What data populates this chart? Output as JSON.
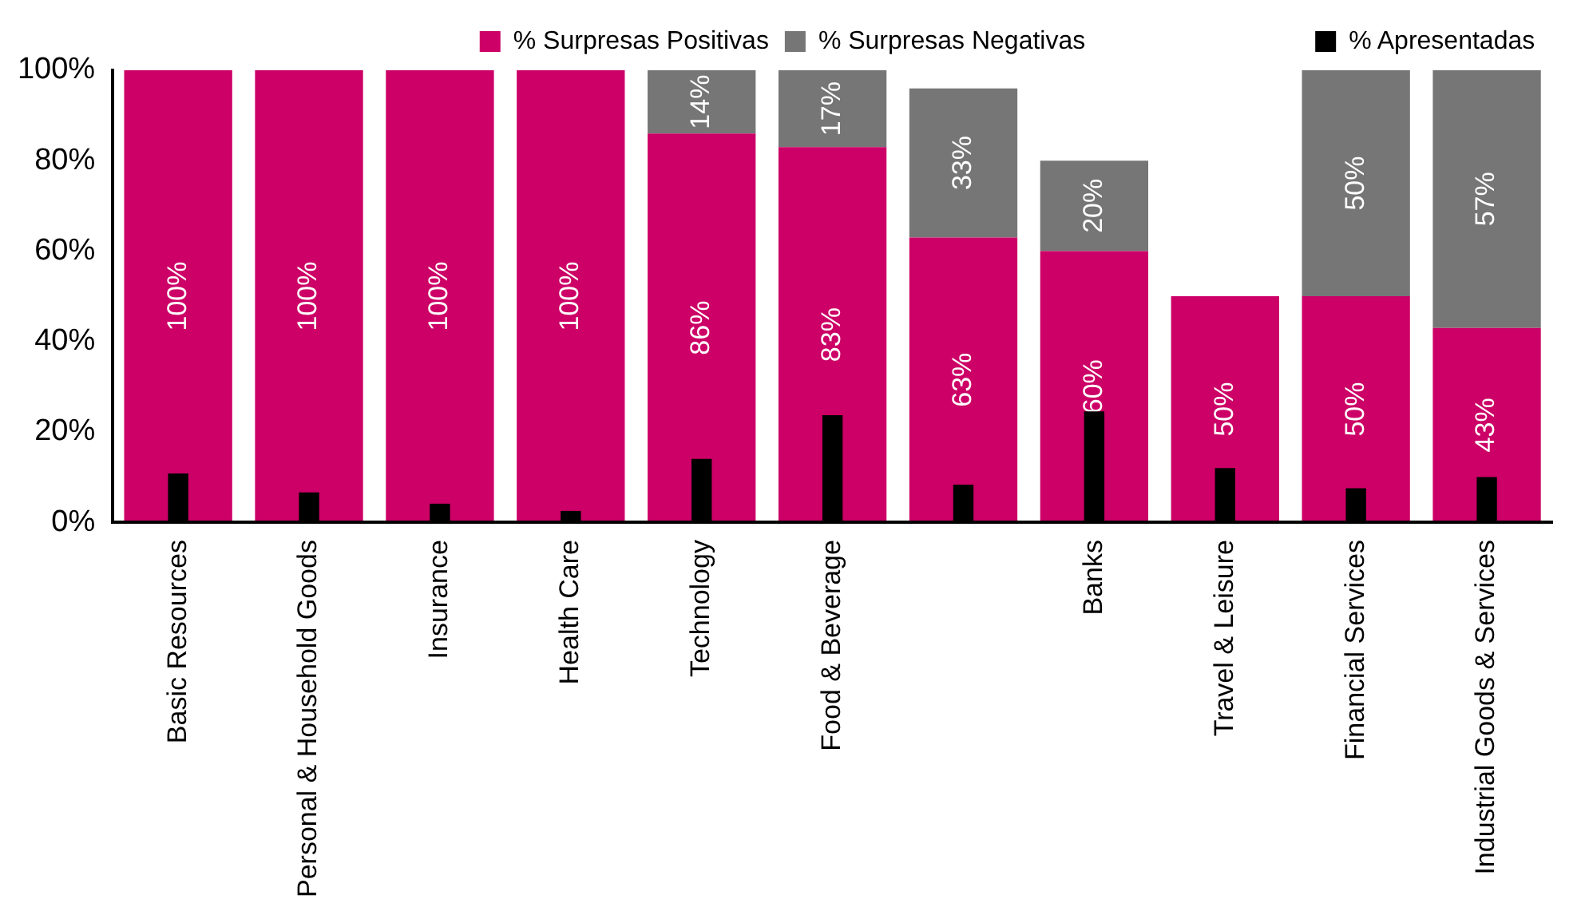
{
  "chart_data": [
    {
      "type": "bar",
      "stacked": true,
      "legend": "top",
      "grid": false,
      "categories": [
        "Basic Resources",
        "Personal & Household Goods",
        "Insurance",
        "Health Care",
        "Technology",
        "Food & Beverage",
        null,
        "Banks",
        "Travel & Leisure",
        "Financial Services",
        "Industrial Goods & Services"
      ],
      "series": [
        {
          "name": "% Surpresas Positivas",
          "color": "#cc0066",
          "values": [
            100,
            100,
            100,
            100,
            86,
            83,
            63,
            60,
            50,
            50,
            43
          ],
          "value_labels": [
            "100%",
            "100%",
            "100%",
            "100%",
            "86%",
            "83%",
            "63%",
            "60%",
            "50%",
            "50%",
            "43%"
          ]
        },
        {
          "name": "% Surpresas Negativas",
          "color": "#767676",
          "values": [
            0,
            0,
            0,
            0,
            14,
            17,
            33,
            20,
            null,
            50,
            57
          ],
          "value_labels": [
            null,
            null,
            null,
            null,
            "14%",
            "17%",
            "33%",
            "20%",
            null,
            "50%",
            "57%"
          ]
        }
      ],
      "ylim": [
        0,
        100
      ],
      "yticks": [
        {
          "value": 0,
          "label": "0%"
        },
        {
          "value": 20,
          "label": "20%"
        },
        {
          "value": 40,
          "label": "40%"
        },
        {
          "value": 60,
          "label": "60%"
        },
        {
          "value": 80,
          "label": "80%"
        },
        {
          "value": 100,
          "label": "100%"
        }
      ]
    },
    {
      "type": "bar",
      "legend": "top right",
      "grid": false,
      "tick_labels": false,
      "categories": [
        null,
        null,
        null,
        null,
        null,
        null,
        null,
        null,
        null,
        null,
        null
      ],
      "series": [
        {
          "name": "% Apresentadas",
          "color": "#000000",
          "values": [
            10.8,
            6.6,
            4.1,
            2.5,
            14,
            23.7,
            8.3,
            24.5,
            12,
            7.5,
            10
          ]
        }
      ],
      "ylim": [
        0,
        100
      ]
    }
  ]
}
